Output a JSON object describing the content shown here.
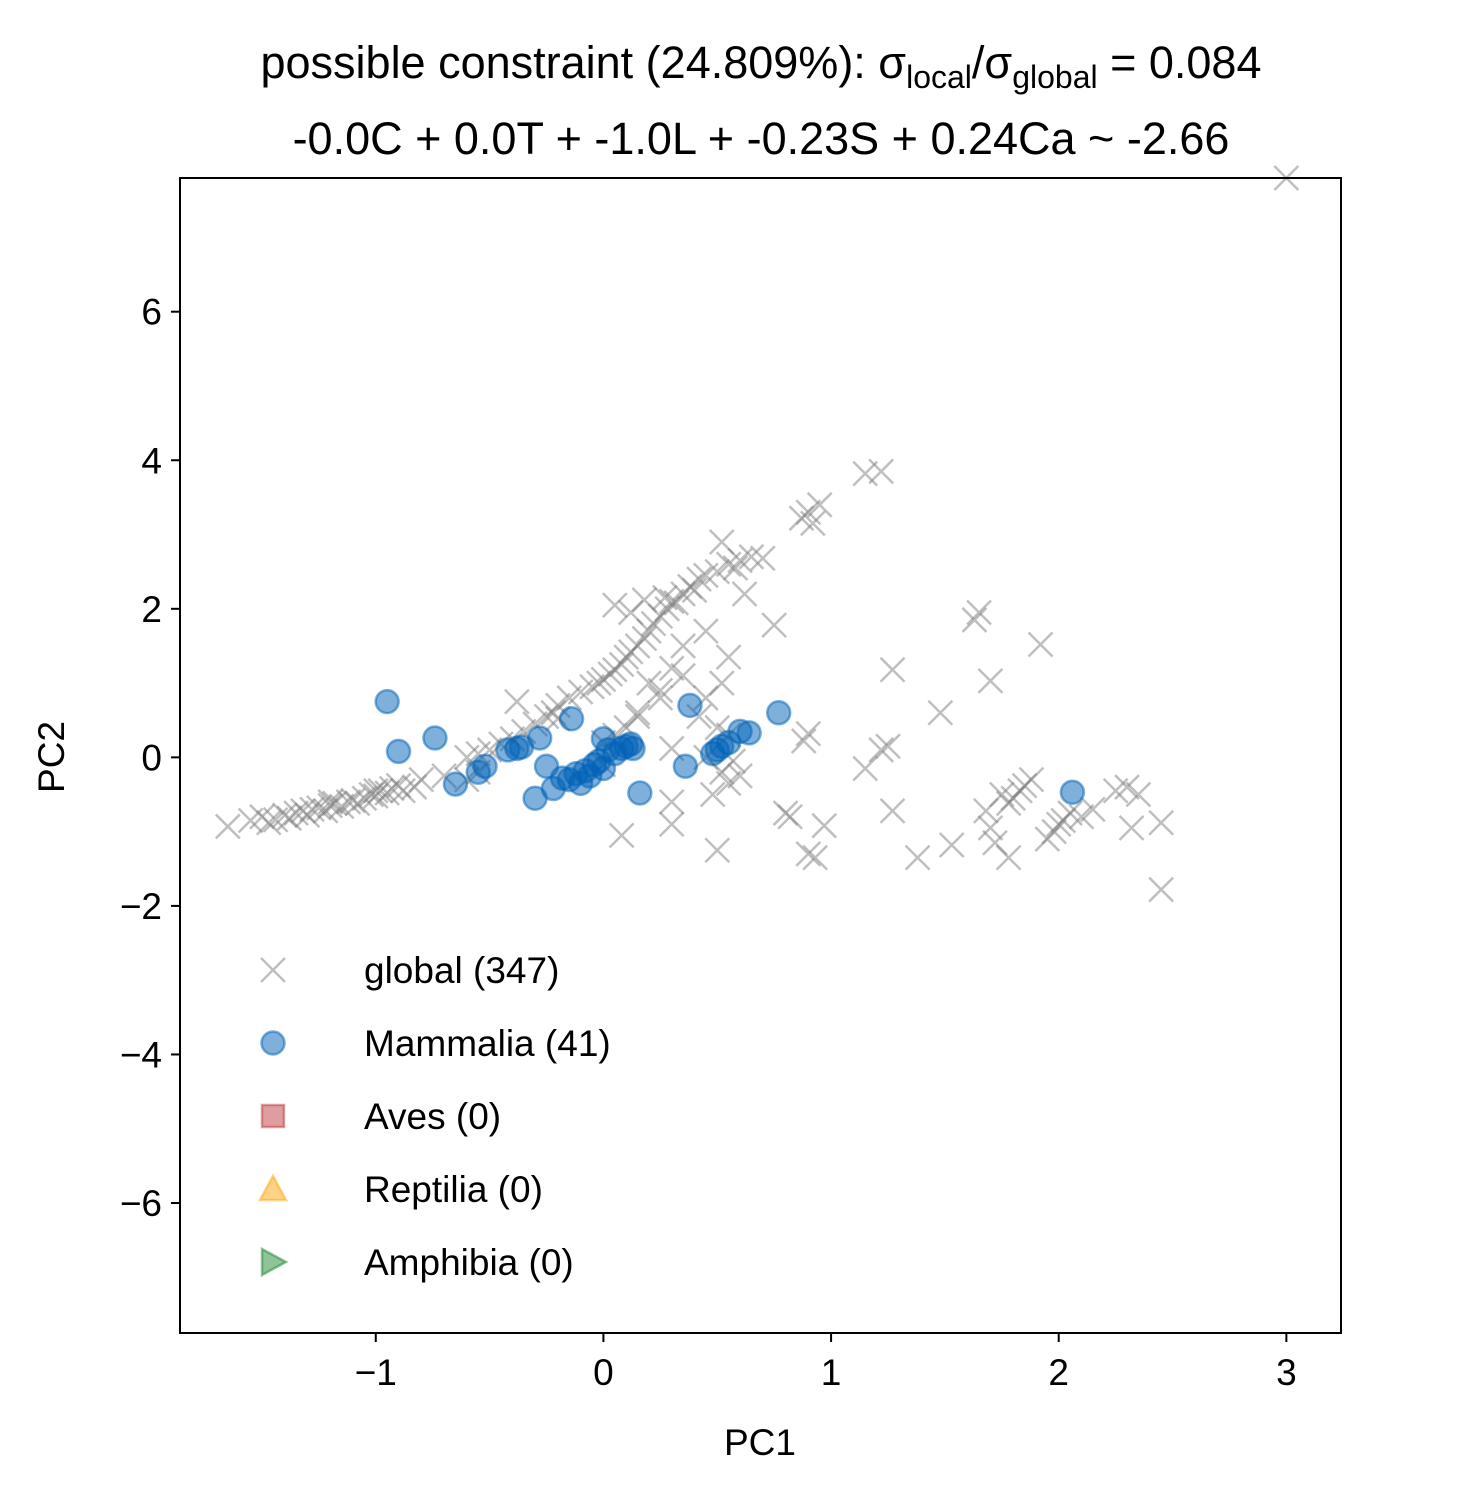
{
  "chart_data": {
    "type": "scatter",
    "title": {
      "line1_prefix": "possible constraint (24.809%): σ",
      "line1_sub_local": "local",
      "line1_slash": "/σ",
      "line1_sub_global": "global",
      "line1_suffix": " = 0.084",
      "line2": "-0.0C + 0.0T + -1.0L + -0.23S + 0.24Ca ~ -2.66"
    },
    "xlabel": "PC1",
    "ylabel": "PC2",
    "xlim": [
      -1.86,
      3.24
    ],
    "ylim": [
      -7.75,
      7.8
    ],
    "xticks": [
      -1,
      0,
      1,
      2,
      3
    ],
    "xtick_labels": [
      "−1",
      "0",
      "1",
      "2",
      "3"
    ],
    "yticks": [
      6,
      4,
      2,
      0,
      -2,
      -4,
      -6
    ],
    "ytick_labels": [
      "6",
      "4",
      "2",
      "0",
      "−2",
      "−4",
      "−6"
    ],
    "legend_position": "lower-left",
    "series": [
      {
        "name": "global",
        "label": "global (347)",
        "marker": "x",
        "color": "#808080",
        "points": [
          [
            -1.65,
            -0.93
          ],
          [
            -1.55,
            -0.85
          ],
          [
            -1.5,
            -0.8
          ],
          [
            -1.47,
            -0.88
          ],
          [
            -1.44,
            -0.84
          ],
          [
            -1.4,
            -0.78
          ],
          [
            -1.38,
            -0.82
          ],
          [
            -1.35,
            -0.75
          ],
          [
            -1.32,
            -0.72
          ],
          [
            -1.3,
            -0.78
          ],
          [
            -1.28,
            -0.7
          ],
          [
            -1.25,
            -0.68
          ],
          [
            -1.22,
            -0.72
          ],
          [
            -1.2,
            -0.65
          ],
          [
            -1.18,
            -0.62
          ],
          [
            -1.15,
            -0.66
          ],
          [
            -1.12,
            -0.6
          ],
          [
            -1.1,
            -0.58
          ],
          [
            -1.08,
            -0.62
          ],
          [
            -1.05,
            -0.55
          ],
          [
            -1.02,
            -0.5
          ],
          [
            -1.0,
            -0.52
          ],
          [
            -0.98,
            -0.45
          ],
          [
            -0.95,
            -0.48
          ],
          [
            -0.93,
            -0.42
          ],
          [
            -0.9,
            -0.38
          ],
          [
            -0.88,
            -0.45
          ],
          [
            -0.83,
            -0.4
          ],
          [
            -0.6,
            -0.3
          ],
          [
            -0.55,
            -0.2
          ],
          [
            -0.6,
            0.0
          ],
          [
            -0.55,
            0.05
          ],
          [
            -0.5,
            0.1
          ],
          [
            -0.45,
            0.18
          ],
          [
            -0.4,
            0.25
          ],
          [
            -0.38,
            0.75
          ],
          [
            -0.35,
            0.35
          ],
          [
            -0.3,
            0.45
          ],
          [
            -0.25,
            0.55
          ],
          [
            -0.22,
            0.6
          ],
          [
            -0.2,
            0.7
          ],
          [
            -0.15,
            0.8
          ],
          [
            -0.1,
            0.88
          ],
          [
            -0.05,
            0.95
          ],
          [
            -0.02,
            1.0
          ],
          [
            0.0,
            1.05
          ],
          [
            0.03,
            1.12
          ],
          [
            0.05,
            1.18
          ],
          [
            0.08,
            1.25
          ],
          [
            0.1,
            1.35
          ],
          [
            0.12,
            1.42
          ],
          [
            0.15,
            1.5
          ],
          [
            0.18,
            1.6
          ],
          [
            0.2,
            1.7
          ],
          [
            0.22,
            1.8
          ],
          [
            0.25,
            1.9
          ],
          [
            0.28,
            2.0
          ],
          [
            0.3,
            2.1
          ],
          [
            0.35,
            2.2
          ],
          [
            0.38,
            2.3
          ],
          [
            0.42,
            2.4
          ],
          [
            0.45,
            2.45
          ],
          [
            0.5,
            2.5
          ],
          [
            0.52,
            2.9
          ],
          [
            0.55,
            2.6
          ],
          [
            0.6,
            2.65
          ],
          [
            0.65,
            2.7
          ],
          [
            0.7,
            2.68
          ],
          [
            0.58,
            2.55
          ],
          [
            0.62,
            2.2
          ],
          [
            0.32,
            2.08
          ],
          [
            0.12,
            1.95
          ],
          [
            0.05,
            2.05
          ],
          [
            0.18,
            2.12
          ],
          [
            0.27,
            2.15
          ],
          [
            0.4,
            2.25
          ],
          [
            0.45,
            1.7
          ],
          [
            0.35,
            1.5
          ],
          [
            0.3,
            1.2
          ],
          [
            0.2,
            1.0
          ],
          [
            0.25,
            0.8
          ],
          [
            0.15,
            0.55
          ],
          [
            0.1,
            0.4
          ],
          [
            0.05,
            0.3
          ],
          [
            0.0,
            0.2
          ],
          [
            0.15,
            0.6
          ],
          [
            0.25,
            0.9
          ],
          [
            0.35,
            1.1
          ],
          [
            0.55,
            1.35
          ],
          [
            0.52,
            1.0
          ],
          [
            0.45,
            0.8
          ],
          [
            0.42,
            0.55
          ],
          [
            0.5,
            0.4
          ],
          [
            0.55,
            0.3
          ],
          [
            0.45,
            0.0
          ],
          [
            0.52,
            -0.2
          ],
          [
            0.55,
            -0.35
          ],
          [
            0.6,
            -0.25
          ],
          [
            0.57,
            -0.05
          ],
          [
            0.48,
            -0.5
          ],
          [
            0.5,
            -1.25
          ],
          [
            0.3,
            -0.6
          ],
          [
            0.08,
            -1.05
          ],
          [
            0.75,
            1.78
          ],
          [
            0.87,
            3.22
          ],
          [
            0.9,
            3.3
          ],
          [
            0.95,
            3.4
          ],
          [
            0.92,
            3.15
          ],
          [
            1.15,
            3.82
          ],
          [
            1.22,
            3.85
          ],
          [
            0.8,
            -0.75
          ],
          [
            0.82,
            -0.8
          ],
          [
            0.88,
            0.22
          ],
          [
            0.9,
            0.32
          ],
          [
            0.9,
            -1.3
          ],
          [
            0.93,
            -1.35
          ],
          [
            0.97,
            -0.92
          ],
          [
            1.15,
            -0.15
          ],
          [
            1.22,
            0.1
          ],
          [
            1.25,
            0.15
          ],
          [
            1.27,
            1.18
          ],
          [
            1.27,
            -0.72
          ],
          [
            1.38,
            -1.35
          ],
          [
            1.48,
            0.6
          ],
          [
            1.53,
            -1.18
          ],
          [
            1.63,
            1.85
          ],
          [
            1.65,
            1.95
          ],
          [
            1.68,
            -0.72
          ],
          [
            1.7,
            -0.95
          ],
          [
            1.7,
            1.03
          ],
          [
            1.72,
            -1.15
          ],
          [
            1.75,
            -0.5
          ],
          [
            1.78,
            -0.62
          ],
          [
            1.8,
            -0.55
          ],
          [
            1.83,
            -0.45
          ],
          [
            1.85,
            -0.38
          ],
          [
            1.88,
            -0.3
          ],
          [
            1.78,
            -1.35
          ],
          [
            1.92,
            1.52
          ],
          [
            1.95,
            -1.1
          ],
          [
            1.98,
            -1.0
          ],
          [
            2.0,
            -0.9
          ],
          [
            2.02,
            -0.85
          ],
          [
            2.05,
            -0.75
          ],
          [
            2.1,
            -0.8
          ],
          [
            2.15,
            -0.7
          ],
          [
            2.25,
            -0.45
          ],
          [
            2.3,
            -0.4
          ],
          [
            2.35,
            -0.5
          ],
          [
            2.32,
            -0.95
          ],
          [
            2.45,
            -0.88
          ],
          [
            2.45,
            -1.78
          ],
          [
            3.0,
            7.8
          ],
          [
            -1.2,
            -0.6
          ],
          [
            -1.0,
            -0.45
          ],
          [
            -0.8,
            -0.3
          ],
          [
            -0.7,
            -0.25
          ],
          [
            -0.2,
            0.52
          ],
          [
            0.3,
            0.12
          ],
          [
            0.0,
            -0.1
          ],
          [
            0.3,
            -0.9
          ]
        ]
      },
      {
        "name": "Mammalia",
        "label": "Mammalia (41)",
        "marker": "o",
        "color": "#0062b8",
        "points": [
          [
            -0.95,
            0.75
          ],
          [
            -0.9,
            0.08
          ],
          [
            -0.74,
            0.26
          ],
          [
            -0.65,
            -0.36
          ],
          [
            -0.55,
            -0.2
          ],
          [
            -0.52,
            -0.12
          ],
          [
            -0.42,
            0.1
          ],
          [
            -0.38,
            0.12
          ],
          [
            -0.36,
            0.14
          ],
          [
            -0.3,
            -0.55
          ],
          [
            -0.28,
            0.26
          ],
          [
            -0.25,
            -0.12
          ],
          [
            -0.22,
            -0.42
          ],
          [
            -0.18,
            -0.28
          ],
          [
            -0.15,
            -0.3
          ],
          [
            -0.14,
            0.52
          ],
          [
            -0.12,
            -0.22
          ],
          [
            -0.1,
            -0.35
          ],
          [
            -0.08,
            -0.18
          ],
          [
            -0.06,
            -0.25
          ],
          [
            -0.04,
            -0.1
          ],
          [
            -0.02,
            -0.05
          ],
          [
            0.0,
            -0.15
          ],
          [
            0.0,
            0.25
          ],
          [
            0.02,
            0.1
          ],
          [
            0.05,
            0.05
          ],
          [
            0.08,
            0.12
          ],
          [
            0.1,
            0.15
          ],
          [
            0.12,
            0.18
          ],
          [
            0.13,
            0.12
          ],
          [
            0.16,
            -0.48
          ],
          [
            0.36,
            -0.12
          ],
          [
            0.38,
            0.7
          ],
          [
            0.48,
            0.05
          ],
          [
            0.5,
            0.1
          ],
          [
            0.52,
            0.15
          ],
          [
            0.55,
            0.2
          ],
          [
            0.6,
            0.35
          ],
          [
            0.64,
            0.33
          ],
          [
            0.77,
            0.6
          ],
          [
            2.06,
            -0.47
          ]
        ]
      },
      {
        "name": "Aves",
        "label": "Aves (0)",
        "marker": "s",
        "color": "#c03b3f",
        "points": []
      },
      {
        "name": "Reptilia",
        "label": "Reptilia (0)",
        "marker": "^",
        "color": "#ffa70d",
        "points": []
      },
      {
        "name": "Amphibia",
        "label": "Amphibia (0)",
        "marker": ">",
        "color": "#1e8a2f",
        "points": []
      }
    ]
  }
}
